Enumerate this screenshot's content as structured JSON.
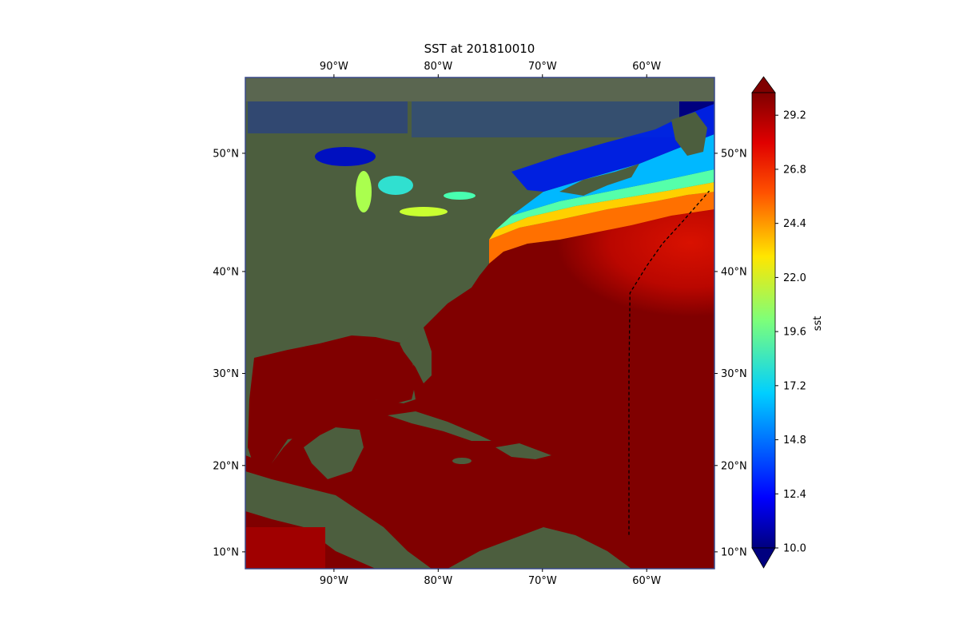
{
  "title": "SST at 201810010",
  "map": {
    "lon_range": [
      -98.5,
      -53.5
    ],
    "lat_range": [
      8.0,
      55.5
    ],
    "x_ticks": [
      {
        "lon": -90,
        "label": "90°W"
      },
      {
        "lon": -80,
        "label": "80°W"
      },
      {
        "lon": -70,
        "label": "70°W"
      },
      {
        "lon": -60,
        "label": "60°W"
      }
    ],
    "y_ticks": [
      {
        "lat": 50,
        "label": "50°N"
      },
      {
        "lat": 40,
        "label": "40°N"
      },
      {
        "lat": 30,
        "label": "30°N"
      },
      {
        "lat": 20,
        "label": "20°N"
      },
      {
        "lat": 10,
        "label": "10°N"
      }
    ],
    "track": [
      [
        -61.7,
        12.0
      ],
      [
        -61.7,
        20.0
      ],
      [
        -61.7,
        30.0
      ],
      [
        -61.6,
        38.0
      ],
      [
        -60.0,
        40.5
      ],
      [
        -58.5,
        42.5
      ],
      [
        -56.5,
        44.5
      ],
      [
        -54.0,
        47.0
      ]
    ],
    "colors": {
      "land": "#4c5e3e",
      "ocean_warm": "#800000",
      "frame": "#3a4a8c"
    }
  },
  "colorbar": {
    "label": "sst",
    "vmin": 10.0,
    "vmax": 30.2,
    "ticks": [
      "10.0",
      "12.4",
      "14.8",
      "17.2",
      "19.6",
      "22.0",
      "24.4",
      "26.8",
      "29.2"
    ],
    "extend": "both",
    "colormap": "jet"
  }
}
